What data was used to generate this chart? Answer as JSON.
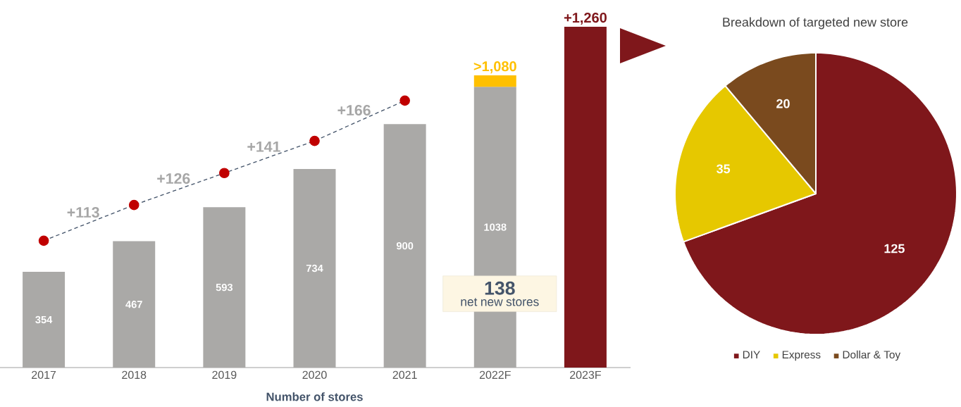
{
  "chart_data": [
    {
      "type": "bar",
      "stacked": true,
      "xlabel": "Number of stores",
      "categories": [
        "2017",
        "2018",
        "2019",
        "2020",
        "2021",
        "2022F",
        "2023F"
      ],
      "series": [
        {
          "color": "#aaa9a7",
          "values": [
            354,
            467,
            593,
            734,
            900,
            1038,
            null
          ],
          "value_labels": [
            "354",
            "467",
            "593",
            "734",
            "900",
            "1038",
            null
          ]
        },
        {
          "color": "#ffc000",
          "values": [
            null,
            null,
            null,
            null,
            null,
            42,
            null
          ],
          "value_labels": [
            null,
            null,
            null,
            null,
            null,
            ">1,080",
            null
          ]
        },
        {
          "color": "#7f171b",
          "values": [
            null,
            null,
            null,
            null,
            null,
            null,
            1260
          ],
          "value_labels": [
            null,
            null,
            null,
            null,
            null,
            null,
            "+1,260"
          ]
        },
        {
          "type": "line",
          "color": "#c00000",
          "marker": "circle",
          "line_style": "dashed",
          "values": [
            469,
            601,
            719,
            838,
            987,
            null,
            null
          ]
        }
      ],
      "annotations": [
        "+113",
        "+126",
        "+141",
        "+166",
        "138",
        "net new stores"
      ]
    },
    {
      "type": "pie",
      "title": "Breakdown of targeted new store",
      "categories": [
        "DIY",
        "Express",
        "Dollar & Toy"
      ],
      "values": [
        125,
        35,
        20
      ],
      "colors": [
        "#7f171b",
        "#e6c800",
        "#7a4a1e"
      ],
      "data_labels": true,
      "legend": "bottom"
    }
  ]
}
